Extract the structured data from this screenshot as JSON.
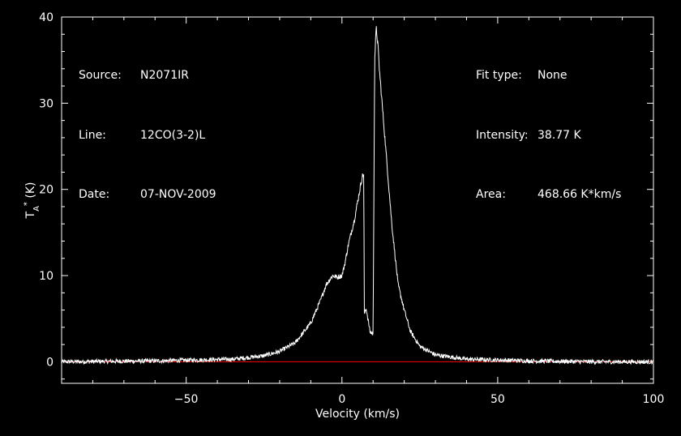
{
  "chart_data": {
    "type": "line",
    "title": "",
    "xlabel": "Velocity (km/s)",
    "ylabel": "T_A* (K)",
    "xlim": [
      -90,
      100
    ],
    "ylim": [
      -2.5,
      40
    ],
    "xticks": [
      -50,
      0,
      50,
      100
    ],
    "yticks": [
      0,
      10,
      20,
      30,
      40
    ],
    "xticklabels": [
      "−50",
      "0",
      "50",
      "100"
    ],
    "yticklabels": [
      "0",
      "10",
      "20",
      "30",
      "40"
    ],
    "grid": false,
    "baseline": {
      "y": 0,
      "color": "#ff0000"
    },
    "series": [
      {
        "line_color": "#ffffff",
        "noise_level": 0.25,
        "x": [
          -90,
          -60,
          -35,
          -30,
          -25,
          -20,
          -15,
          -10,
          -7,
          -5,
          -3,
          -1.5,
          0,
          1,
          2,
          4,
          5.5,
          6.5,
          7,
          7.2,
          7.8,
          9,
          10,
          10.5,
          11,
          11.5,
          12,
          14,
          16,
          18,
          20,
          22,
          25,
          30,
          40,
          60,
          80,
          100
        ],
        "values": [
          0,
          0.1,
          0.3,
          0.5,
          0.7,
          1.2,
          2.2,
          4.5,
          7,
          9,
          10,
          9.8,
          10,
          11.5,
          13.5,
          16.5,
          19.5,
          21.5,
          21.8,
          5.5,
          6.2,
          3.5,
          3.2,
          35,
          38.7,
          37,
          34,
          25,
          16,
          9,
          6,
          3.5,
          1.8,
          0.8,
          0.3,
          0.1,
          0,
          0
        ]
      }
    ]
  },
  "info_left": [
    {
      "key": "Source:",
      "value": "N2071IR"
    },
    {
      "key": "Line:",
      "value": "12CO(3-2)L"
    },
    {
      "key": "Date:",
      "value": "07-NOV-2009"
    }
  ],
  "info_right": [
    {
      "key": "Fit type:",
      "value": "None"
    },
    {
      "key": "Intensity:",
      "value": "38.77 K"
    },
    {
      "key": "Area:",
      "value": "468.66 K*km/s"
    }
  ]
}
